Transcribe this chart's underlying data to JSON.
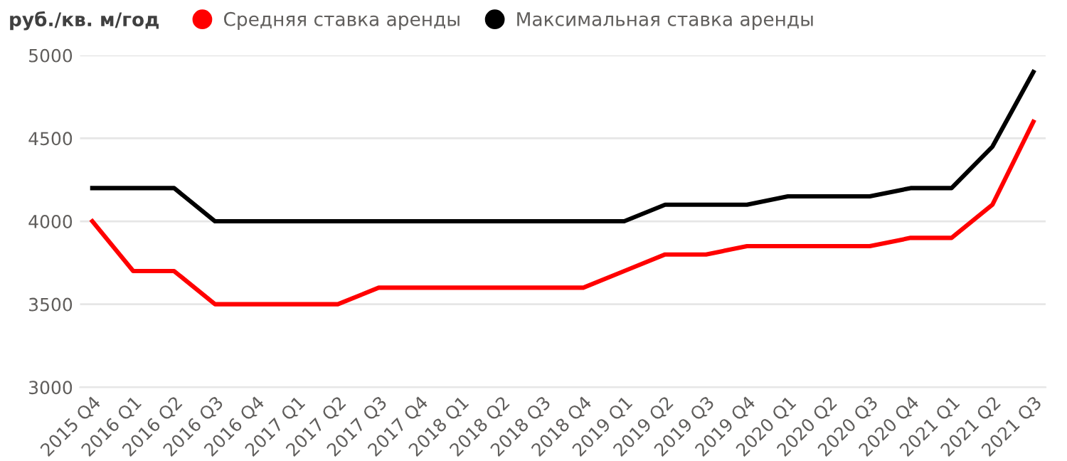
{
  "chart_data": {
    "type": "line",
    "legend_title": "руб./кв. м/год",
    "legend": "top left",
    "grid": "y",
    "marker": "none",
    "line_style": "solid",
    "categories": [
      "2015 Q4",
      "2016 Q1",
      "2016 Q2",
      "2016 Q3",
      "2016 Q4",
      "2017 Q1",
      "2017 Q2",
      "2017 Q3",
      "2017 Q4",
      "2018 Q1",
      "2018 Q2",
      "2018 Q3",
      "2018 Q4",
      "2019 Q1",
      "2019 Q2",
      "2019 Q3",
      "2019 Q4",
      "2020 Q1",
      "2020 Q2",
      "2020 Q3",
      "2020 Q4",
      "2021 Q1",
      "2021 Q2",
      "2021 Q3"
    ],
    "ylim": [
      3000,
      5000
    ],
    "yticks": [
      3000,
      3500,
      4000,
      4500,
      5000
    ],
    "series": [
      {
        "name": "Средняя ставка аренды",
        "color": "#ff0000",
        "values": [
          4000,
          3700,
          3700,
          3500,
          3500,
          3500,
          3500,
          3600,
          3600,
          3600,
          3600,
          3600,
          3600,
          3700,
          3800,
          3800,
          3850,
          3850,
          3850,
          3850,
          3900,
          3900,
          4100,
          4600
        ]
      },
      {
        "name": "Максимальная ставка аренды",
        "color": "#000000",
        "values": [
          4200,
          4200,
          4200,
          4000,
          4000,
          4000,
          4000,
          4000,
          4000,
          4000,
          4000,
          4000,
          4000,
          4000,
          4100,
          4100,
          4100,
          4150,
          4150,
          4150,
          4200,
          4200,
          4450,
          4900
        ]
      }
    ]
  }
}
